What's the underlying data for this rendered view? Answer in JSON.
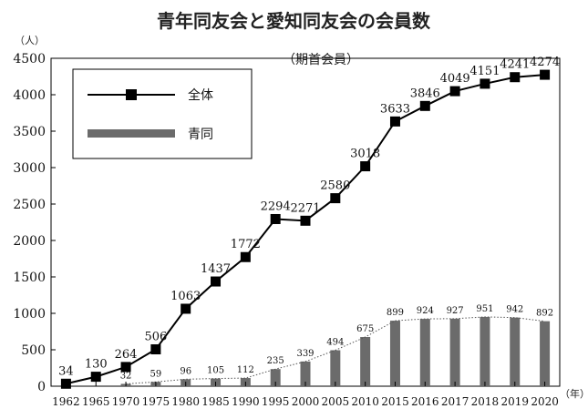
{
  "chart_data": {
    "type": "line",
    "title": "青年同友会と愛知同友会の会員数",
    "subtitle": "（期首会員）",
    "y_unit": "（人）",
    "x_unit": "（年）",
    "ylim": [
      0,
      4500
    ],
    "yticks": [
      0,
      500,
      1000,
      1500,
      2000,
      2500,
      3000,
      3500,
      4000,
      4500
    ],
    "categories": [
      "1962",
      "1965",
      "1970",
      "1975",
      "1980",
      "1985",
      "1990",
      "1995",
      "2000",
      "2005",
      "2010",
      "2015",
      "2016",
      "2017",
      "2018",
      "2019",
      "2020"
    ],
    "series": [
      {
        "name": "全体",
        "type": "line",
        "color": "#000000",
        "values": [
          34,
          130,
          264,
          506,
          1063,
          1437,
          1772,
          2294,
          2271,
          2580,
          3018,
          3633,
          3846,
          4049,
          4151,
          4241,
          4274
        ]
      },
      {
        "name": "青同",
        "type": "bar",
        "color": "#6b6b6b",
        "values": [
          null,
          null,
          32,
          59,
          96,
          105,
          112,
          235,
          339,
          494,
          675,
          899,
          924,
          927,
          951,
          942,
          892
        ]
      }
    ],
    "legend": "top-left",
    "grid": false
  }
}
